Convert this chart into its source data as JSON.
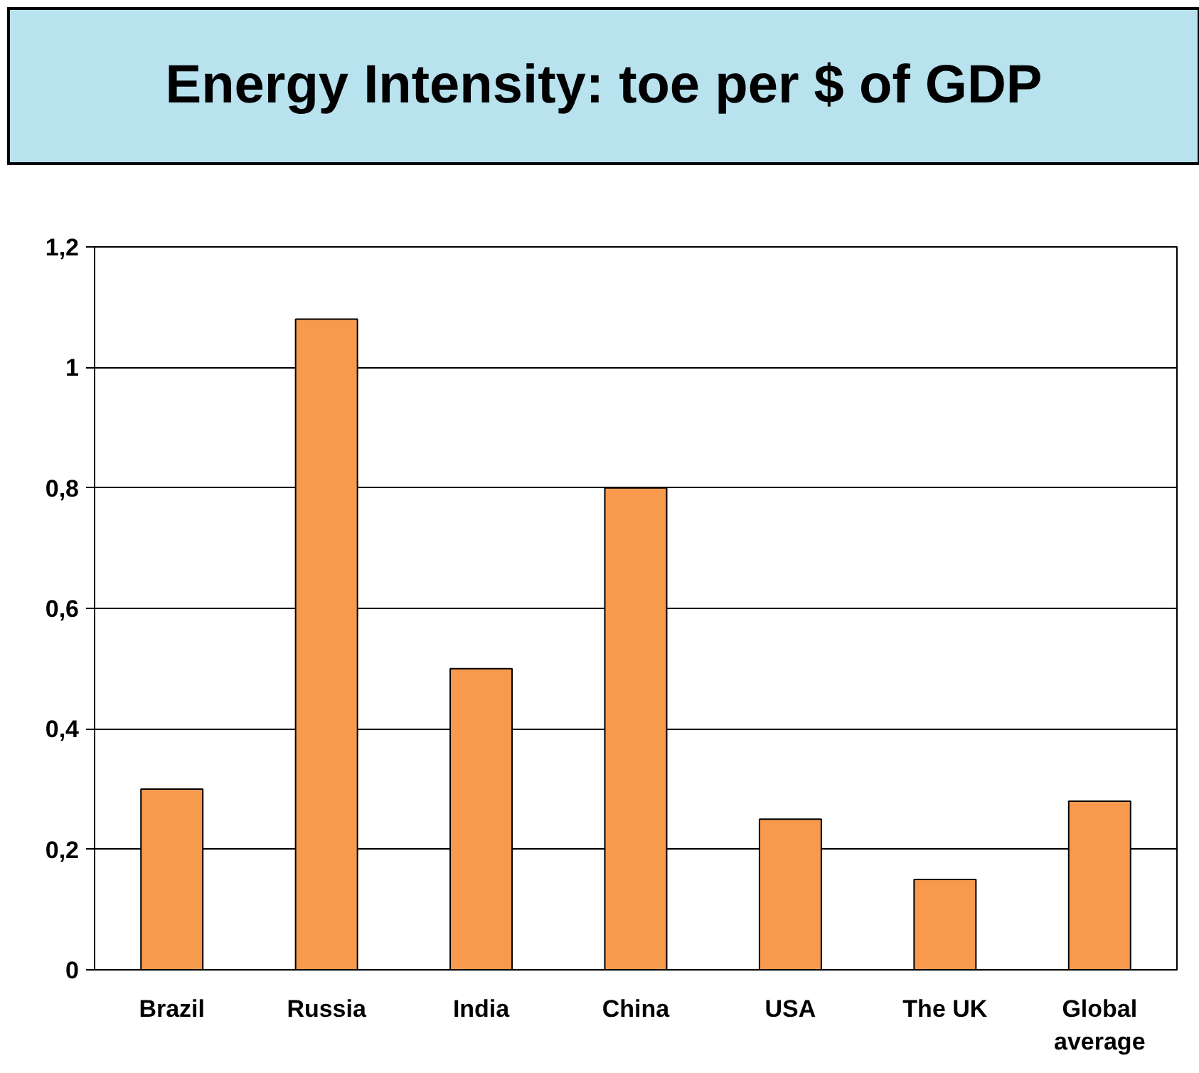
{
  "chart_data": {
    "type": "bar",
    "title": "Energy Intensity: toe per $ of GDP",
    "categories": [
      "Brazil",
      "Russia",
      "India",
      "China",
      "USA",
      "The UK",
      "Global average"
    ],
    "values": [
      0.3,
      1.08,
      0.5,
      0.8,
      0.25,
      0.15,
      0.28
    ],
    "color": "#f79a4e",
    "ylim": [
      0,
      1.2
    ],
    "yticks": [
      {
        "value": 0,
        "label": "0"
      },
      {
        "value": 0.2,
        "label": "0,2"
      },
      {
        "value": 0.4,
        "label": "0,4"
      },
      {
        "value": 0.6,
        "label": "0,6"
      },
      {
        "value": 0.8,
        "label": "0,8"
      },
      {
        "value": 1,
        "label": "1"
      },
      {
        "value": 1.2,
        "label": "1,2"
      }
    ],
    "grid": "y"
  }
}
